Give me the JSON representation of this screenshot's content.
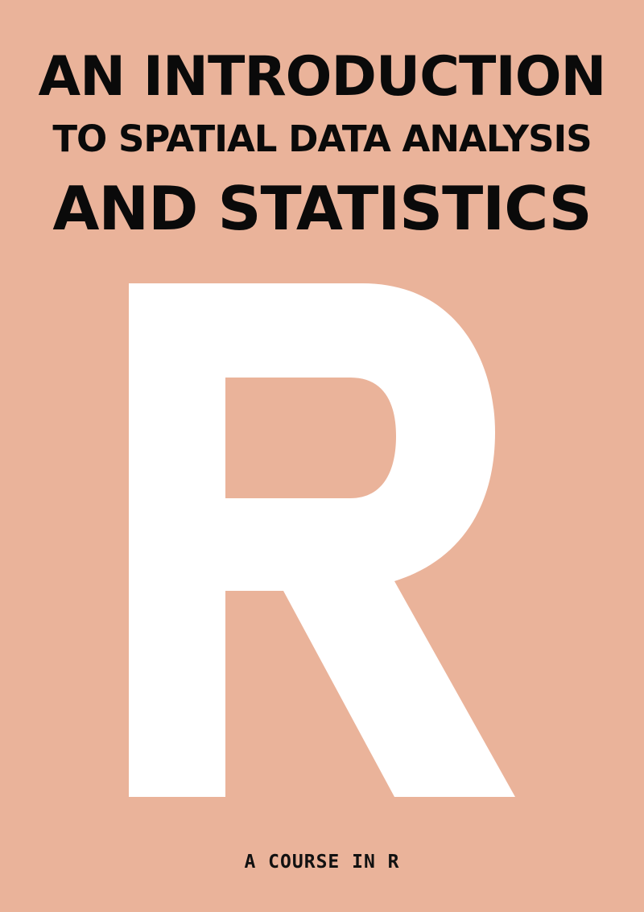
{
  "cover": {
    "title_line_1": "AN INTRODUCTION",
    "title_line_2": "TO SPATIAL DATA ANALYSIS",
    "title_line_3": "AND STATISTICS",
    "big_letter": "R",
    "subtitle": "A COURSE IN R"
  },
  "colors": {
    "background": "#eab39a",
    "title_text": "#0a0a0a",
    "letter": "#ffffff"
  }
}
